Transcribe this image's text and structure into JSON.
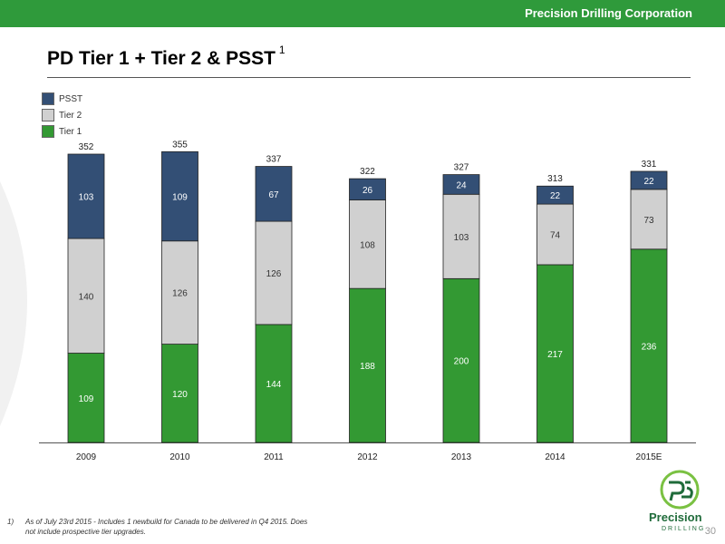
{
  "header": {
    "company": "Precision Drilling Corporation",
    "accent": "#2f9a3b"
  },
  "slide": {
    "title": "PD Tier 1 + Tier 2 & PSST",
    "title_footnote_mark": "1",
    "page_number": "30"
  },
  "legend": [
    {
      "label": "PSST",
      "color": "#334f75"
    },
    {
      "label": "Tier 2",
      "color": "#d0d0d0"
    },
    {
      "label": "Tier 1",
      "color": "#339933"
    }
  ],
  "footnote": {
    "marker": "1)",
    "text": "As of July 23rd 2015 - Includes 1 newbuild for Canada to be delivered in Q4 2015. Does not include prospective tier upgrades."
  },
  "logo": {
    "word": "Precision",
    "sub": "DRILLING"
  },
  "chart_data": {
    "type": "bar",
    "stacked": true,
    "categories": [
      "2009",
      "2010",
      "2011",
      "2012",
      "2013",
      "2014",
      "2015E"
    ],
    "series": [
      {
        "name": "Tier 1",
        "values": [
          109,
          120,
          144,
          188,
          200,
          217,
          236
        ],
        "color": "#339933"
      },
      {
        "name": "Tier 2",
        "values": [
          140,
          126,
          126,
          108,
          103,
          74,
          73
        ],
        "color": "#d0d0d0"
      },
      {
        "name": "PSST",
        "values": [
          103,
          109,
          67,
          26,
          24,
          22,
          22
        ],
        "color": "#334f75"
      }
    ],
    "totals": [
      352,
      355,
      337,
      322,
      327,
      313,
      331
    ],
    "legend_position": "top-left",
    "ylim": [
      0,
      360
    ]
  }
}
